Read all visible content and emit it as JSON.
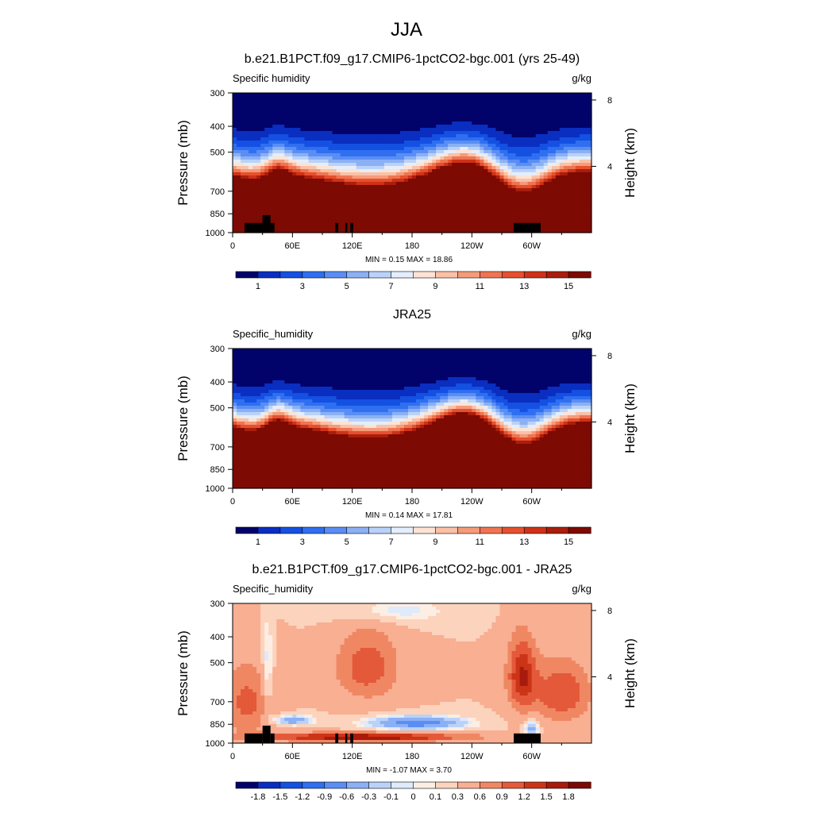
{
  "figure": {
    "main_title": "JJA",
    "minmax_label_min": "MIN =",
    "minmax_label_max": "MAX ="
  },
  "chart_data": [
    {
      "type": "heatmap",
      "panel_title": "b.e21.B1PCT.f09_g17.CMIP6-1pctCO2-bgc.001 (yrs 25-49)",
      "left_string": "Specific humidity",
      "right_string": "g/kg",
      "ylabel": "Pressure (mb)",
      "ylabel_right": "Height (km)",
      "x_ticks": [
        "0",
        "60E",
        "120E",
        "180",
        "120W",
        "60W"
      ],
      "x_tick_values": [
        0,
        60,
        120,
        180,
        240,
        300
      ],
      "xlim": [
        0,
        360
      ],
      "y_ticks": [
        "300",
        "400",
        "500",
        "700",
        "850",
        "1000"
      ],
      "y_tick_values": [
        300,
        400,
        500,
        700,
        850,
        1000
      ],
      "ylim": [
        1000,
        300
      ],
      "y_scale": "log",
      "right_ticks": [
        "8",
        "4"
      ],
      "right_tick_values": [
        8,
        4
      ],
      "min": "0.15",
      "max": "18.86",
      "field": "model",
      "colorbar_labels": [
        "1",
        "3",
        "5",
        "7",
        "9",
        "11",
        "13",
        "15"
      ],
      "colorbar_label_slots": [
        1,
        3,
        5,
        7,
        9,
        11,
        13,
        15
      ],
      "colorbar_colors": [
        "#02036a",
        "#0a2ec0",
        "#1450e2",
        "#2f6ff0",
        "#5a8ef4",
        "#8bb0f4",
        "#bad2f8",
        "#e4eefc",
        "#fde3d4",
        "#fac1a7",
        "#f59b7a",
        "#ef7552",
        "#e6502e",
        "#cf3217",
        "#a91e0d",
        "#7d0a03"
      ]
    },
    {
      "type": "heatmap",
      "panel_title": "JRA25",
      "left_string": "Specific_humidity",
      "right_string": "g/kg",
      "ylabel": "Pressure (mb)",
      "ylabel_right": "Height (km)",
      "x_ticks": [
        "0",
        "60E",
        "120E",
        "180",
        "120W",
        "60W"
      ],
      "x_tick_values": [
        0,
        60,
        120,
        180,
        240,
        300
      ],
      "xlim": [
        0,
        360
      ],
      "y_ticks": [
        "300",
        "400",
        "500",
        "700",
        "850",
        "1000"
      ],
      "y_tick_values": [
        300,
        400,
        500,
        700,
        850,
        1000
      ],
      "ylim": [
        1000,
        300
      ],
      "y_scale": "log",
      "right_ticks": [
        "8",
        "4"
      ],
      "right_tick_values": [
        8,
        4
      ],
      "min": "0.14",
      "max": "17.81",
      "field": "obs",
      "colorbar_labels": [
        "1",
        "3",
        "5",
        "7",
        "9",
        "11",
        "13",
        "15"
      ],
      "colorbar_label_slots": [
        1,
        3,
        5,
        7,
        9,
        11,
        13,
        15
      ],
      "colorbar_colors": [
        "#02036a",
        "#0a2ec0",
        "#1450e2",
        "#2f6ff0",
        "#5a8ef4",
        "#8bb0f4",
        "#bad2f8",
        "#e4eefc",
        "#fde3d4",
        "#fac1a7",
        "#f59b7a",
        "#ef7552",
        "#e6502e",
        "#cf3217",
        "#a91e0d",
        "#7d0a03"
      ]
    },
    {
      "type": "heatmap",
      "panel_title": "b.e21.B1PCT.f09_g17.CMIP6-1pctCO2-bgc.001 - JRA25",
      "left_string": "Specific_humidity",
      "right_string": "g/kg",
      "ylabel": "Pressure (mb)",
      "ylabel_right": "Height (km)",
      "x_ticks": [
        "0",
        "60E",
        "120E",
        "180",
        "120W",
        "60W"
      ],
      "x_tick_values": [
        0,
        60,
        120,
        180,
        240,
        300
      ],
      "xlim": [
        0,
        360
      ],
      "y_ticks": [
        "300",
        "400",
        "500",
        "700",
        "850",
        "1000"
      ],
      "y_tick_values": [
        300,
        400,
        500,
        700,
        850,
        1000
      ],
      "ylim": [
        1000,
        300
      ],
      "y_scale": "log",
      "right_ticks": [
        "8",
        "4"
      ],
      "right_tick_values": [
        8,
        4
      ],
      "min": "-1.07",
      "max": "3.70",
      "field": "diff",
      "colorbar_labels": [
        "-1.8",
        "-1.5",
        "-1.2",
        "-0.9",
        "-0.6",
        "-0.3",
        "-0.1",
        "0",
        "0.1",
        "0.3",
        "0.6",
        "0.9",
        "1.2",
        "1.5",
        "1.8"
      ],
      "colorbar_label_slots": [
        1,
        2,
        3,
        4,
        5,
        6,
        7,
        8,
        9,
        10,
        11,
        12,
        13,
        14,
        15
      ],
      "colorbar_colors": [
        "#02036a",
        "#0a2ec0",
        "#1450e2",
        "#2f6ff0",
        "#5a8ef4",
        "#8bb0f4",
        "#bad2f8",
        "#dfeafb",
        "#fdeee4",
        "#fcd3bd",
        "#f8af92",
        "#f08763",
        "#e4593a",
        "#cc3418",
        "#a81b0c",
        "#7c0903"
      ]
    }
  ]
}
